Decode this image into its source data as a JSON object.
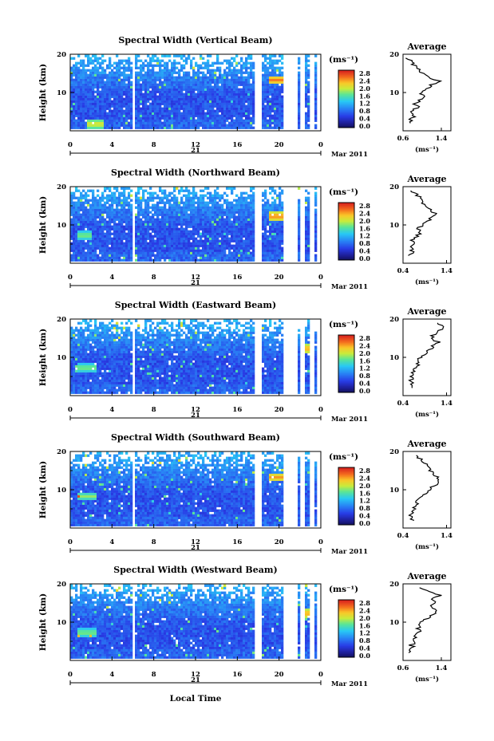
{
  "figure": {
    "date_label": "Mar 2011",
    "day_label": "21",
    "x_axis_label": "Local Time",
    "y_axis_label": "Height (km)",
    "units_label": "(ms⁻¹)",
    "profile_title": "Average",
    "profile_xlabel": "(ms⁻¹)"
  },
  "chart_data": [
    {
      "type": "heatmap",
      "title": "Spectral Width (Vertical Beam)",
      "xlabel": "Local Time",
      "ylabel": "Height (km)",
      "xlim": [
        0,
        24
      ],
      "ylim": [
        0,
        20
      ],
      "xticks": [
        "0",
        "4",
        "8",
        "12",
        "16",
        "20",
        "0"
      ],
      "yticks": [
        "10",
        "20"
      ],
      "colorbar": {
        "label": "(ms⁻¹)",
        "ticks": [
          "0.0",
          "0.4",
          "0.8",
          "1.2",
          "1.6",
          "2.0",
          "2.4",
          "2.8"
        ],
        "range": [
          0,
          3.0
        ]
      },
      "data_gaps_hours": [
        [
          5.8,
          6.0
        ],
        [
          17.6,
          18.2
        ],
        [
          20.2,
          21.6
        ],
        [
          22.0,
          22.4
        ],
        [
          22.9,
          23.3
        ],
        [
          23.5,
          24
        ]
      ],
      "enhanced_layers": [
        {
          "height_km": 13,
          "time_hours": [
            19.0,
            20.5
          ],
          "width_ms": 2.6
        },
        {
          "height_km": 1.5,
          "time_hours": [
            1.5,
            3.0
          ],
          "width_ms": 2.2
        }
      ],
      "profile": {
        "title": "Average",
        "xlabel": "(ms⁻¹)",
        "xticks": [
          "0.6",
          "1.4"
        ],
        "xlim": [
          0.6,
          1.6
        ],
        "heights_km": [
          2,
          3,
          4,
          5,
          6,
          7,
          8,
          9,
          10,
          11,
          12,
          13,
          14,
          15,
          16,
          17,
          18,
          19
        ],
        "values_ms": [
          0.8,
          0.75,
          0.82,
          0.78,
          0.9,
          0.85,
          0.95,
          1.05,
          0.95,
          1.1,
          1.2,
          1.35,
          1.15,
          1.05,
          0.9,
          0.85,
          0.75,
          0.7
        ]
      }
    },
    {
      "type": "heatmap",
      "title": "Spectral Width (Northward Beam)",
      "xlabel": "Local Time",
      "ylabel": "Height (km)",
      "xlim": [
        0,
        24
      ],
      "ylim": [
        0,
        20
      ],
      "xticks": [
        "0",
        "4",
        "8",
        "12",
        "16",
        "20",
        "0"
      ],
      "yticks": [
        "10",
        "20"
      ],
      "colorbar": {
        "label": "(ms⁻¹)",
        "ticks": [
          "0.0",
          "0.4",
          "0.8",
          "1.2",
          "1.6",
          "2.0",
          "2.4",
          "2.8"
        ],
        "range": [
          0,
          3.0
        ]
      },
      "data_gaps_hours": [
        [
          5.8,
          6.0
        ],
        [
          17.6,
          18.2
        ],
        [
          20.2,
          21.6
        ],
        [
          22.0,
          22.4
        ],
        [
          22.9,
          23.3
        ],
        [
          23.5,
          24
        ]
      ],
      "enhanced_layers": [
        {
          "height_km": 12,
          "time_hours": [
            19.0,
            20.5
          ],
          "width_ms": 2.6
        },
        {
          "height_km": 7,
          "time_hours": [
            0.5,
            2.0
          ],
          "width_ms": 1.9
        }
      ],
      "profile": {
        "title": "Average",
        "xlabel": "(ms⁻¹)",
        "xticks": [
          "0.4",
          "1.4"
        ],
        "xlim": [
          0.4,
          1.5
        ],
        "heights_km": [
          2,
          3,
          4,
          5,
          6,
          7,
          8,
          9,
          10,
          11,
          12,
          13,
          14,
          15,
          16,
          17,
          18,
          19
        ],
        "values_ms": [
          0.55,
          0.6,
          0.58,
          0.65,
          0.62,
          0.7,
          0.8,
          0.75,
          0.85,
          0.95,
          1.1,
          1.15,
          1.0,
          0.9,
          0.85,
          0.8,
          0.7,
          0.6
        ]
      }
    },
    {
      "type": "heatmap",
      "title": "Spectral Width (Eastward Beam)",
      "xlabel": "Local Time",
      "ylabel": "Height (km)",
      "xlim": [
        0,
        24
      ],
      "ylim": [
        0,
        20
      ],
      "xticks": [
        "0",
        "4",
        "8",
        "12",
        "16",
        "20",
        "0"
      ],
      "yticks": [
        "10",
        "20"
      ],
      "colorbar": {
        "label": "(ms⁻¹)",
        "ticks": [
          "0.0",
          "0.4",
          "0.8",
          "1.2",
          "1.6",
          "2.0",
          "2.4",
          "2.8"
        ],
        "range": [
          0,
          3.0
        ]
      },
      "data_gaps_hours": [
        [
          5.8,
          6.0
        ],
        [
          17.6,
          18.2
        ],
        [
          20.2,
          21.6
        ],
        [
          22.0,
          22.4
        ],
        [
          22.9,
          23.3
        ],
        [
          23.5,
          24
        ]
      ],
      "enhanced_layers": [
        {
          "height_km": 12,
          "time_hours": [
            22.2,
            23.0
          ],
          "width_ms": 2.5
        },
        {
          "height_km": 7,
          "time_hours": [
            0.5,
            2.5
          ],
          "width_ms": 1.9
        }
      ],
      "profile": {
        "title": "Average",
        "xlabel": "(ms⁻¹)",
        "xticks": [
          "0.4",
          "1.4"
        ],
        "xlim": [
          0.4,
          1.5
        ],
        "heights_km": [
          2,
          3,
          4,
          5,
          6,
          7,
          8,
          9,
          10,
          11,
          12,
          13,
          14,
          15,
          16,
          17,
          18,
          19
        ],
        "values_ms": [
          0.55,
          0.6,
          0.58,
          0.62,
          0.6,
          0.7,
          0.78,
          0.72,
          0.8,
          0.9,
          1.0,
          1.1,
          1.2,
          1.05,
          1.1,
          1.25,
          1.3,
          1.2
        ]
      }
    },
    {
      "type": "heatmap",
      "title": "Spectral Width (Southward Beam)",
      "xlabel": "Local Time",
      "ylabel": "Height (km)",
      "xlim": [
        0,
        24
      ],
      "ylim": [
        0,
        20
      ],
      "xticks": [
        "0",
        "4",
        "8",
        "12",
        "16",
        "20",
        "0"
      ],
      "yticks": [
        "10",
        "20"
      ],
      "colorbar": {
        "label": "(ms⁻¹)",
        "ticks": [
          "0.0",
          "0.4",
          "0.8",
          "1.2",
          "1.6",
          "2.0",
          "2.4",
          "2.8"
        ],
        "range": [
          0,
          3.0
        ]
      },
      "data_gaps_hours": [
        [
          5.8,
          6.0
        ],
        [
          17.6,
          18.2
        ],
        [
          20.2,
          21.6
        ],
        [
          22.0,
          22.4
        ],
        [
          22.9,
          23.3
        ],
        [
          23.5,
          24
        ]
      ],
      "enhanced_layers": [
        {
          "height_km": 13,
          "time_hours": [
            19.0,
            20.5
          ],
          "width_ms": 2.5
        },
        {
          "height_km": 8,
          "time_hours": [
            0.5,
            2.5
          ],
          "width_ms": 1.9
        }
      ],
      "profile": {
        "title": "Average",
        "xlabel": "(ms⁻¹)",
        "xticks": [
          "0.4",
          "1.4"
        ],
        "xlim": [
          0.4,
          1.5
        ],
        "heights_km": [
          2,
          3,
          4,
          5,
          6,
          7,
          8,
          9,
          10,
          11,
          12,
          13,
          14,
          15,
          16,
          17,
          18,
          19
        ],
        "values_ms": [
          0.6,
          0.58,
          0.62,
          0.65,
          0.7,
          0.75,
          0.8,
          0.9,
          1.0,
          1.1,
          1.25,
          1.2,
          1.1,
          1.0,
          0.95,
          0.9,
          0.8,
          0.7
        ]
      }
    },
    {
      "type": "heatmap",
      "title": "Spectral Width (Westward Beam)",
      "xlabel": "Local Time",
      "ylabel": "Height (km)",
      "xlim": [
        0,
        24
      ],
      "ylim": [
        0,
        20
      ],
      "xticks": [
        "0",
        "4",
        "8",
        "12",
        "16",
        "20",
        "0"
      ],
      "yticks": [
        "10",
        "20"
      ],
      "colorbar": {
        "label": "(ms⁻¹)",
        "ticks": [
          "0.0",
          "0.4",
          "0.8",
          "1.2",
          "1.6",
          "2.0",
          "2.4",
          "2.8"
        ],
        "range": [
          0,
          3.0
        ]
      },
      "data_gaps_hours": [
        [
          5.8,
          6.0
        ],
        [
          17.6,
          18.2
        ],
        [
          20.2,
          21.6
        ],
        [
          22.0,
          22.4
        ],
        [
          22.9,
          23.3
        ],
        [
          23.5,
          24
        ]
      ],
      "enhanced_layers": [
        {
          "height_km": 12,
          "time_hours": [
            22.2,
            23.0
          ],
          "width_ms": 2.5
        },
        {
          "height_km": 7,
          "time_hours": [
            0.5,
            2.5
          ],
          "width_ms": 1.9
        }
      ],
      "profile": {
        "title": "Average",
        "xlabel": "(ms⁻¹)",
        "xticks": [
          "0.6",
          "1.4"
        ],
        "xlim": [
          0.6,
          1.6
        ],
        "heights_km": [
          2,
          3,
          4,
          5,
          6,
          7,
          8,
          9,
          10,
          11,
          12,
          13,
          14,
          15,
          16,
          17,
          18,
          19
        ],
        "values_ms": [
          0.75,
          0.8,
          0.78,
          0.82,
          0.85,
          0.9,
          0.95,
          0.9,
          1.0,
          1.1,
          1.2,
          1.3,
          1.15,
          1.3,
          1.2,
          1.35,
          1.1,
          0.9
        ]
      }
    }
  ]
}
